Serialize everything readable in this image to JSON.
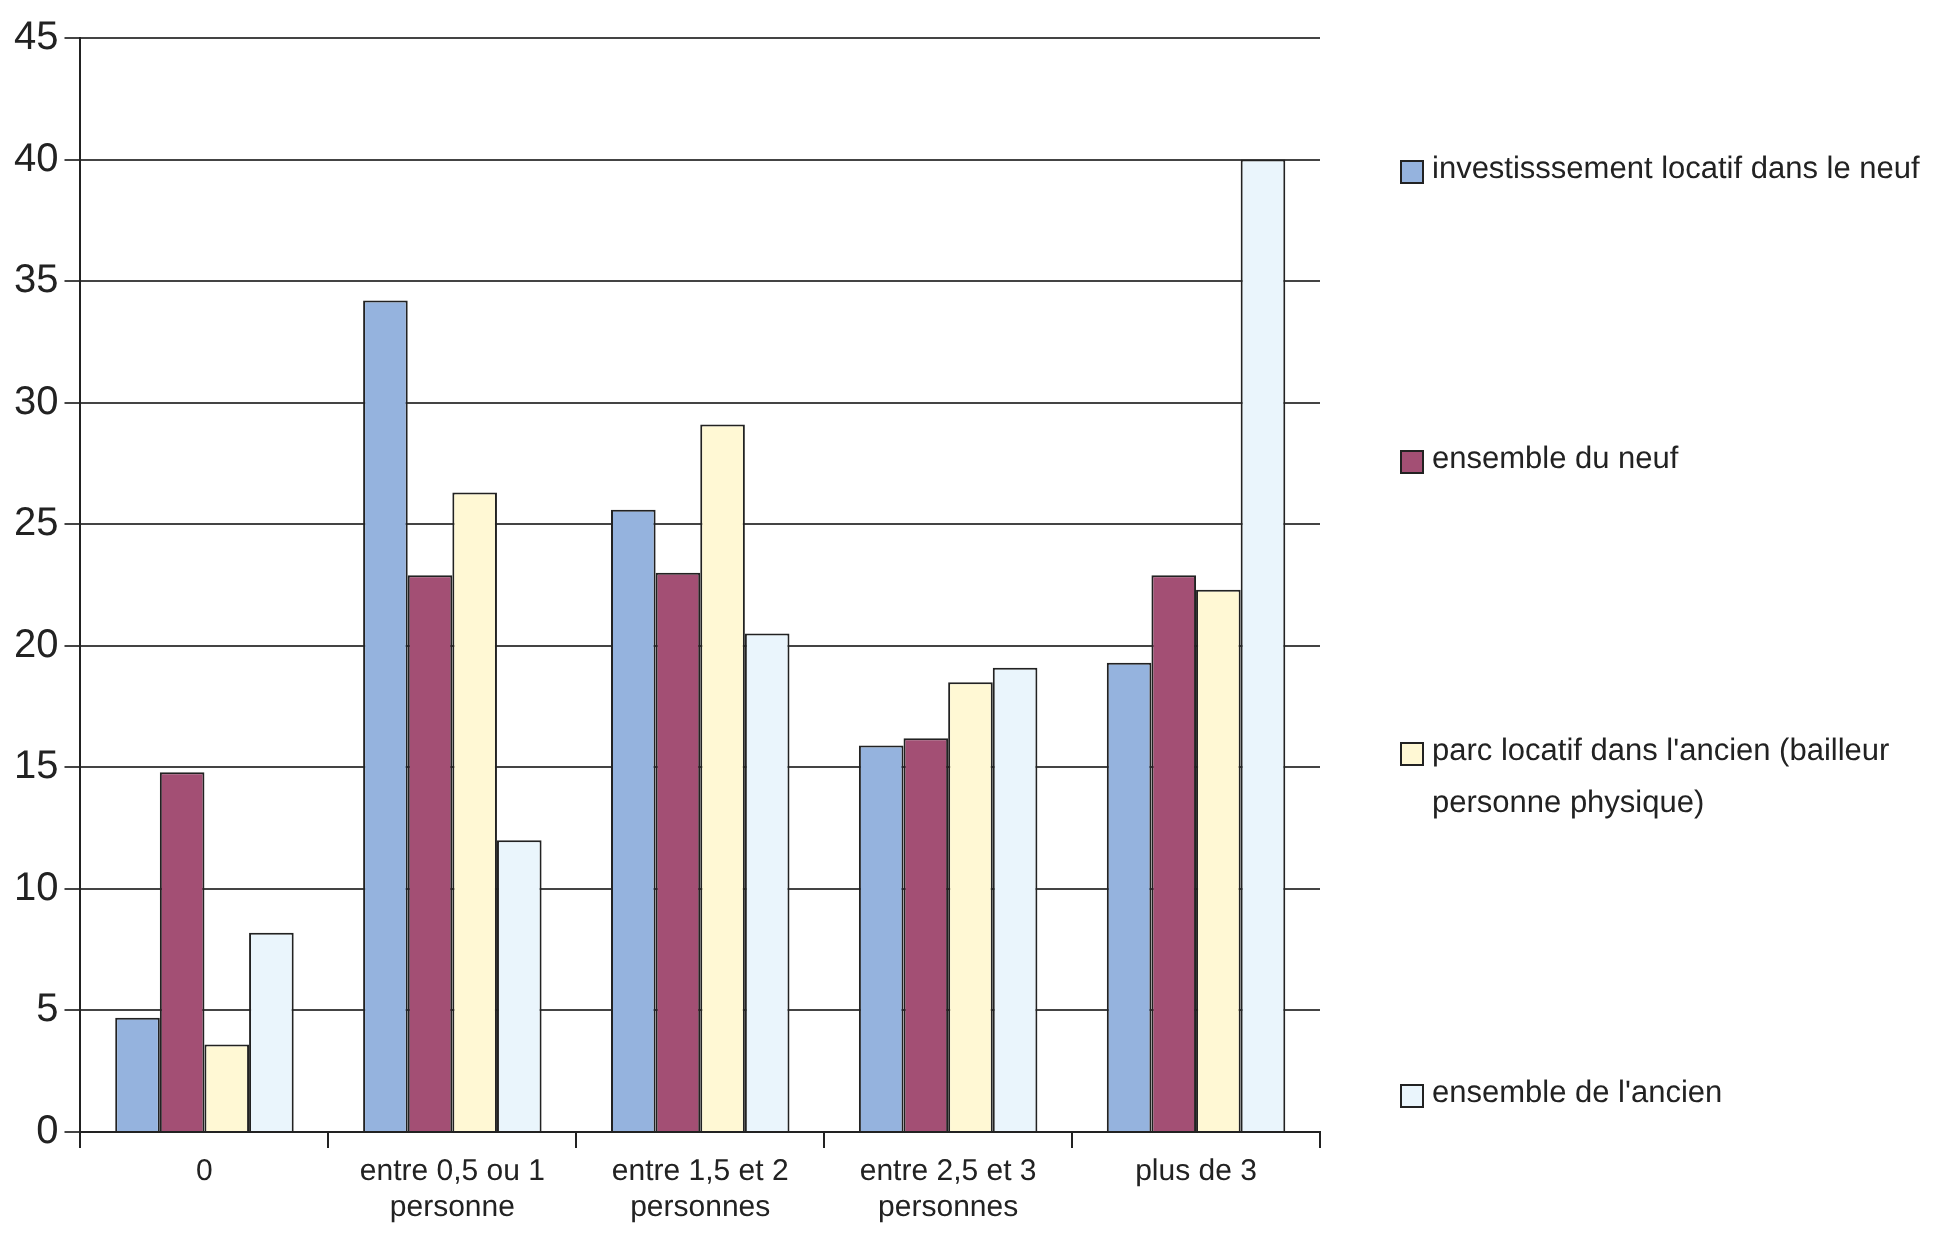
{
  "chart_data": {
    "type": "bar",
    "categories": [
      "0",
      "entre 0,5 ou 1 personne",
      "entre 1,5 et 2 personnes",
      "entre 2,5 et 3 personnes",
      "plus de 3"
    ],
    "series": [
      {
        "name": "investisssement locatif dans le neuf",
        "color": "#95b3de",
        "values": [
          4.7,
          34.2,
          25.6,
          15.9,
          19.3
        ]
      },
      {
        "name": "ensemble du neuf",
        "color": "#a34f74",
        "values": [
          14.8,
          22.9,
          23.0,
          16.2,
          22.9
        ]
      },
      {
        "name": "parc locatif dans l'ancien (bailleur personne physique)",
        "color": "#fff8d4",
        "values": [
          3.6,
          26.3,
          29.1,
          18.5,
          22.3
        ]
      },
      {
        "name": "ensemble de l'ancien",
        "color": "#eaf5fc",
        "values": [
          8.2,
          12.0,
          20.5,
          19.1,
          40.0
        ]
      }
    ],
    "ylim": [
      0,
      45
    ],
    "yticks": [
      0,
      5,
      10,
      15,
      20,
      25,
      30,
      35,
      40,
      45
    ],
    "grid": "y",
    "legend": "right"
  }
}
